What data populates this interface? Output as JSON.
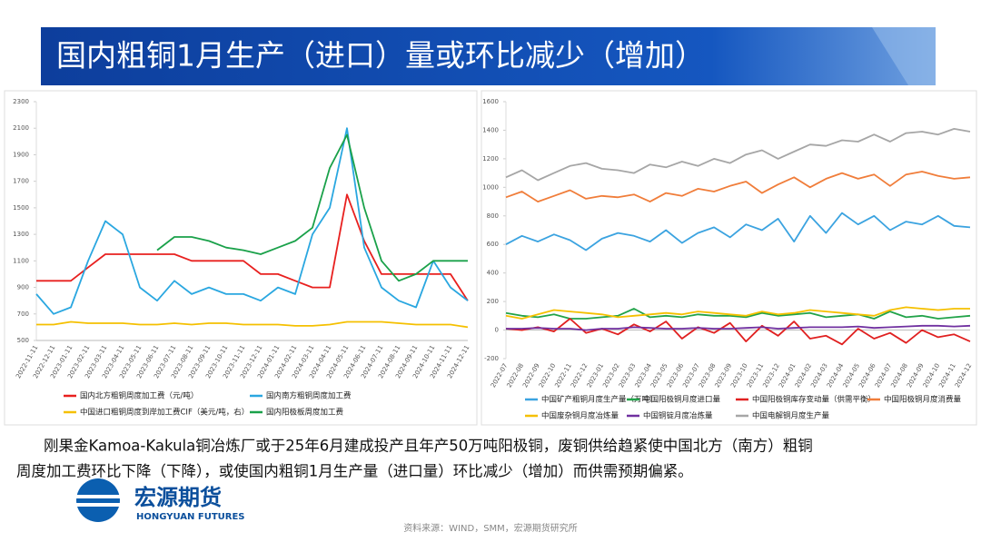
{
  "slide": {
    "title": "国内粗铜1月生产（进口）量或环比减少（增加）",
    "paragraph": [
      "刚果金Kamoa-Kakula铜冶炼厂或于25年6月建成投产且年产50万吨阳极铜，废铜供给趋紧使中国北方（南方）粗铜",
      "周度加工费环比下降（下降），或使国内粗铜1月生产量（进口量）环比减少（增加）而供需预期偏紧。"
    ],
    "logo_cn": "宏源期货",
    "logo_en": "HONGYUAN FUTURES",
    "source": "资料来源：WIND，SMM，宏源期货研究所"
  },
  "chart_data": [
    {
      "type": "line",
      "categories": [
        "2022-11-11",
        "2022-12-11",
        "2023-01-11",
        "2023-02-11",
        "2023-03-11",
        "2023-04-11",
        "2023-05-11",
        "2023-06-11",
        "2023-07-11",
        "2023-08-11",
        "2023-09-11",
        "2023-10-11",
        "2023-11-11",
        "2023-12-11",
        "2024-01-11",
        "2024-02-11",
        "2024-03-11",
        "2024-04-11",
        "2024-05-11",
        "2024-06-11",
        "2024-07-11",
        "2024-08-11",
        "2024-09-11",
        "2024-10-11",
        "2024-11-11",
        "2024-12-11"
      ],
      "ylim": [
        500,
        2300
      ],
      "yticks": [
        500,
        700,
        900,
        1100,
        1300,
        1500,
        1700,
        1900,
        2100,
        2300
      ],
      "series": [
        {
          "name": "国内北方粗铜周度加工费（元/吨）",
          "color": "#e8201f",
          "values": [
            950,
            950,
            950,
            1050,
            1150,
            1150,
            1150,
            1150,
            1150,
            1100,
            1100,
            1100,
            1100,
            1000,
            1000,
            950,
            900,
            900,
            1600,
            1250,
            1000,
            1000,
            1000,
            1000,
            1000,
            800
          ]
        },
        {
          "name": "国内南方粗铜周度加工费",
          "color": "#2aa7e0",
          "values": [
            850,
            700,
            750,
            1100,
            1400,
            1300,
            900,
            800,
            950,
            850,
            900,
            850,
            850,
            800,
            900,
            850,
            1300,
            1500,
            2100,
            1200,
            900,
            800,
            750,
            1100,
            900,
            800
          ]
        },
        {
          "name": "中国进口粗铜周度到岸加工费CIF（美元/吨，右）",
          "color": "#f5c000",
          "values": [
            620,
            620,
            640,
            630,
            630,
            630,
            620,
            620,
            630,
            620,
            630,
            630,
            620,
            620,
            620,
            610,
            610,
            620,
            640,
            640,
            640,
            630,
            620,
            620,
            620,
            600
          ]
        },
        {
          "name": "国内阳极板周度加工费",
          "color": "#1aa14a",
          "values": [
            null,
            null,
            null,
            null,
            null,
            null,
            null,
            1180,
            1280,
            1280,
            1250,
            1200,
            1180,
            1150,
            1200,
            1250,
            1350,
            1800,
            2050,
            1500,
            1100,
            950,
            1000,
            1100,
            1100,
            1100
          ]
        }
      ]
    },
    {
      "type": "line",
      "categories": [
        "2022-07",
        "2022-08",
        "2022-09",
        "2022-10",
        "2022-11",
        "2022-12",
        "2023-01",
        "2023-02",
        "2023-03",
        "2023-04",
        "2023-05",
        "2023-06",
        "2023-07",
        "2023-08",
        "2023-09",
        "2023-10",
        "2023-11",
        "2023-12",
        "2024-01",
        "2024-02",
        "2024-03",
        "2024-04",
        "2024-05",
        "2024-06",
        "2024-07",
        "2024-08",
        "2024-09",
        "2024-10",
        "2024-11",
        "2024-12"
      ],
      "ylim": [
        -200,
        1600
      ],
      "yticks": [
        -200,
        0,
        200,
        400,
        600,
        800,
        1000,
        1200,
        1400,
        1600
      ],
      "series": [
        {
          "name": "中国矿产粗铜月度生产量（万吨）",
          "color": "#3ba3e0",
          "values": [
            600,
            660,
            620,
            670,
            630,
            560,
            640,
            680,
            660,
            620,
            700,
            610,
            680,
            720,
            650,
            740,
            700,
            780,
            620,
            800,
            680,
            820,
            740,
            800,
            700,
            760,
            740,
            800,
            730,
            720
          ]
        },
        {
          "name": "中国阳极铜月度进口量",
          "color": "#22a34a",
          "values": [
            120,
            100,
            90,
            110,
            80,
            80,
            90,
            100,
            150,
            90,
            100,
            90,
            110,
            100,
            100,
            90,
            120,
            100,
            110,
            120,
            90,
            100,
            110,
            80,
            130,
            90,
            100,
            80,
            90,
            100
          ]
        },
        {
          "name": "中国阳极铜库存变动量（供需平衡）",
          "color": "#e02020",
          "values": [
            10,
            0,
            20,
            -10,
            80,
            -20,
            10,
            -30,
            40,
            -10,
            60,
            -60,
            20,
            -20,
            50,
            -80,
            30,
            -40,
            60,
            -60,
            -40,
            -100,
            10,
            -60,
            -20,
            -90,
            0,
            -50,
            -30,
            -80
          ]
        },
        {
          "name": "中国阳极铜月度消费量",
          "color": "#f07d3a",
          "values": [
            930,
            970,
            900,
            940,
            980,
            920,
            940,
            930,
            950,
            900,
            960,
            940,
            990,
            970,
            1010,
            1040,
            960,
            1020,
            1070,
            1000,
            1060,
            1100,
            1060,
            1090,
            1010,
            1090,
            1110,
            1080,
            1060,
            1070
          ]
        },
        {
          "name": "中国废杂铜月度冶炼量",
          "color": "#f5c000",
          "values": [
            100,
            80,
            110,
            140,
            130,
            120,
            110,
            90,
            100,
            110,
            120,
            110,
            130,
            120,
            110,
            100,
            130,
            110,
            120,
            140,
            130,
            120,
            110,
            100,
            140,
            160,
            150,
            140,
            150,
            150
          ]
        },
        {
          "name": "中国铜锭月度冶炼量",
          "color": "#7030a0",
          "values": [
            10,
            10,
            15,
            10,
            10,
            0,
            10,
            10,
            20,
            15,
            10,
            10,
            15,
            10,
            10,
            15,
            20,
            10,
            15,
            20,
            20,
            20,
            25,
            15,
            20,
            25,
            30,
            30,
            25,
            30
          ]
        },
        {
          "name": "中国电解铜月度生产量",
          "color": "#a6a6a6",
          "values": [
            1070,
            1120,
            1050,
            1100,
            1150,
            1170,
            1130,
            1120,
            1100,
            1160,
            1140,
            1180,
            1150,
            1200,
            1170,
            1230,
            1260,
            1200,
            1250,
            1300,
            1290,
            1330,
            1320,
            1370,
            1320,
            1380,
            1390,
            1370,
            1410,
            1390
          ]
        }
      ]
    }
  ]
}
